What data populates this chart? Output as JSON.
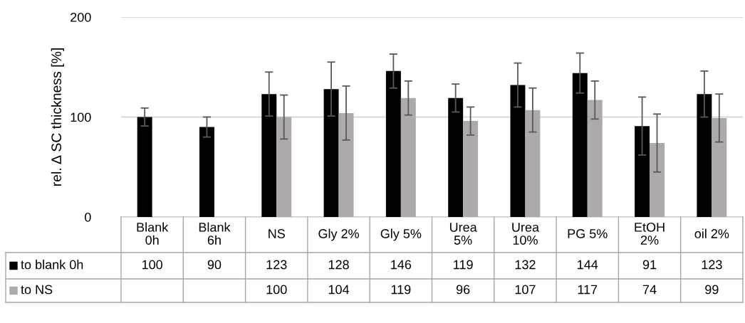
{
  "chart_data": {
    "type": "bar",
    "ylabel": "rel. Δ SC thickness [%]",
    "categories": [
      "Blank\n0h",
      "Blank\n6h",
      "NS",
      "Gly 2%",
      "Gly 5%",
      "Urea\n5%",
      "Urea\n10%",
      "PG 5%",
      "EtOH\n2%",
      "oil 2%"
    ],
    "series": [
      {
        "name": "to blank 0h",
        "color": "#000000",
        "values": [
          100,
          90,
          123,
          128,
          146,
          119,
          132,
          144,
          91,
          123
        ],
        "errors": [
          9,
          10,
          22,
          27,
          17,
          14,
          22,
          20,
          29,
          23
        ]
      },
      {
        "name": "to NS",
        "color": "#aeaaaa",
        "values": [
          null,
          null,
          100,
          104,
          119,
          96,
          107,
          117,
          74,
          99
        ],
        "errors": [
          null,
          null,
          22,
          27,
          17,
          14,
          22,
          19,
          29,
          24
        ]
      }
    ],
    "ylim": [
      0,
      200
    ],
    "yticks": [
      0,
      100,
      200
    ],
    "grid": "y",
    "legend": "bottom",
    "data_labels": true
  }
}
